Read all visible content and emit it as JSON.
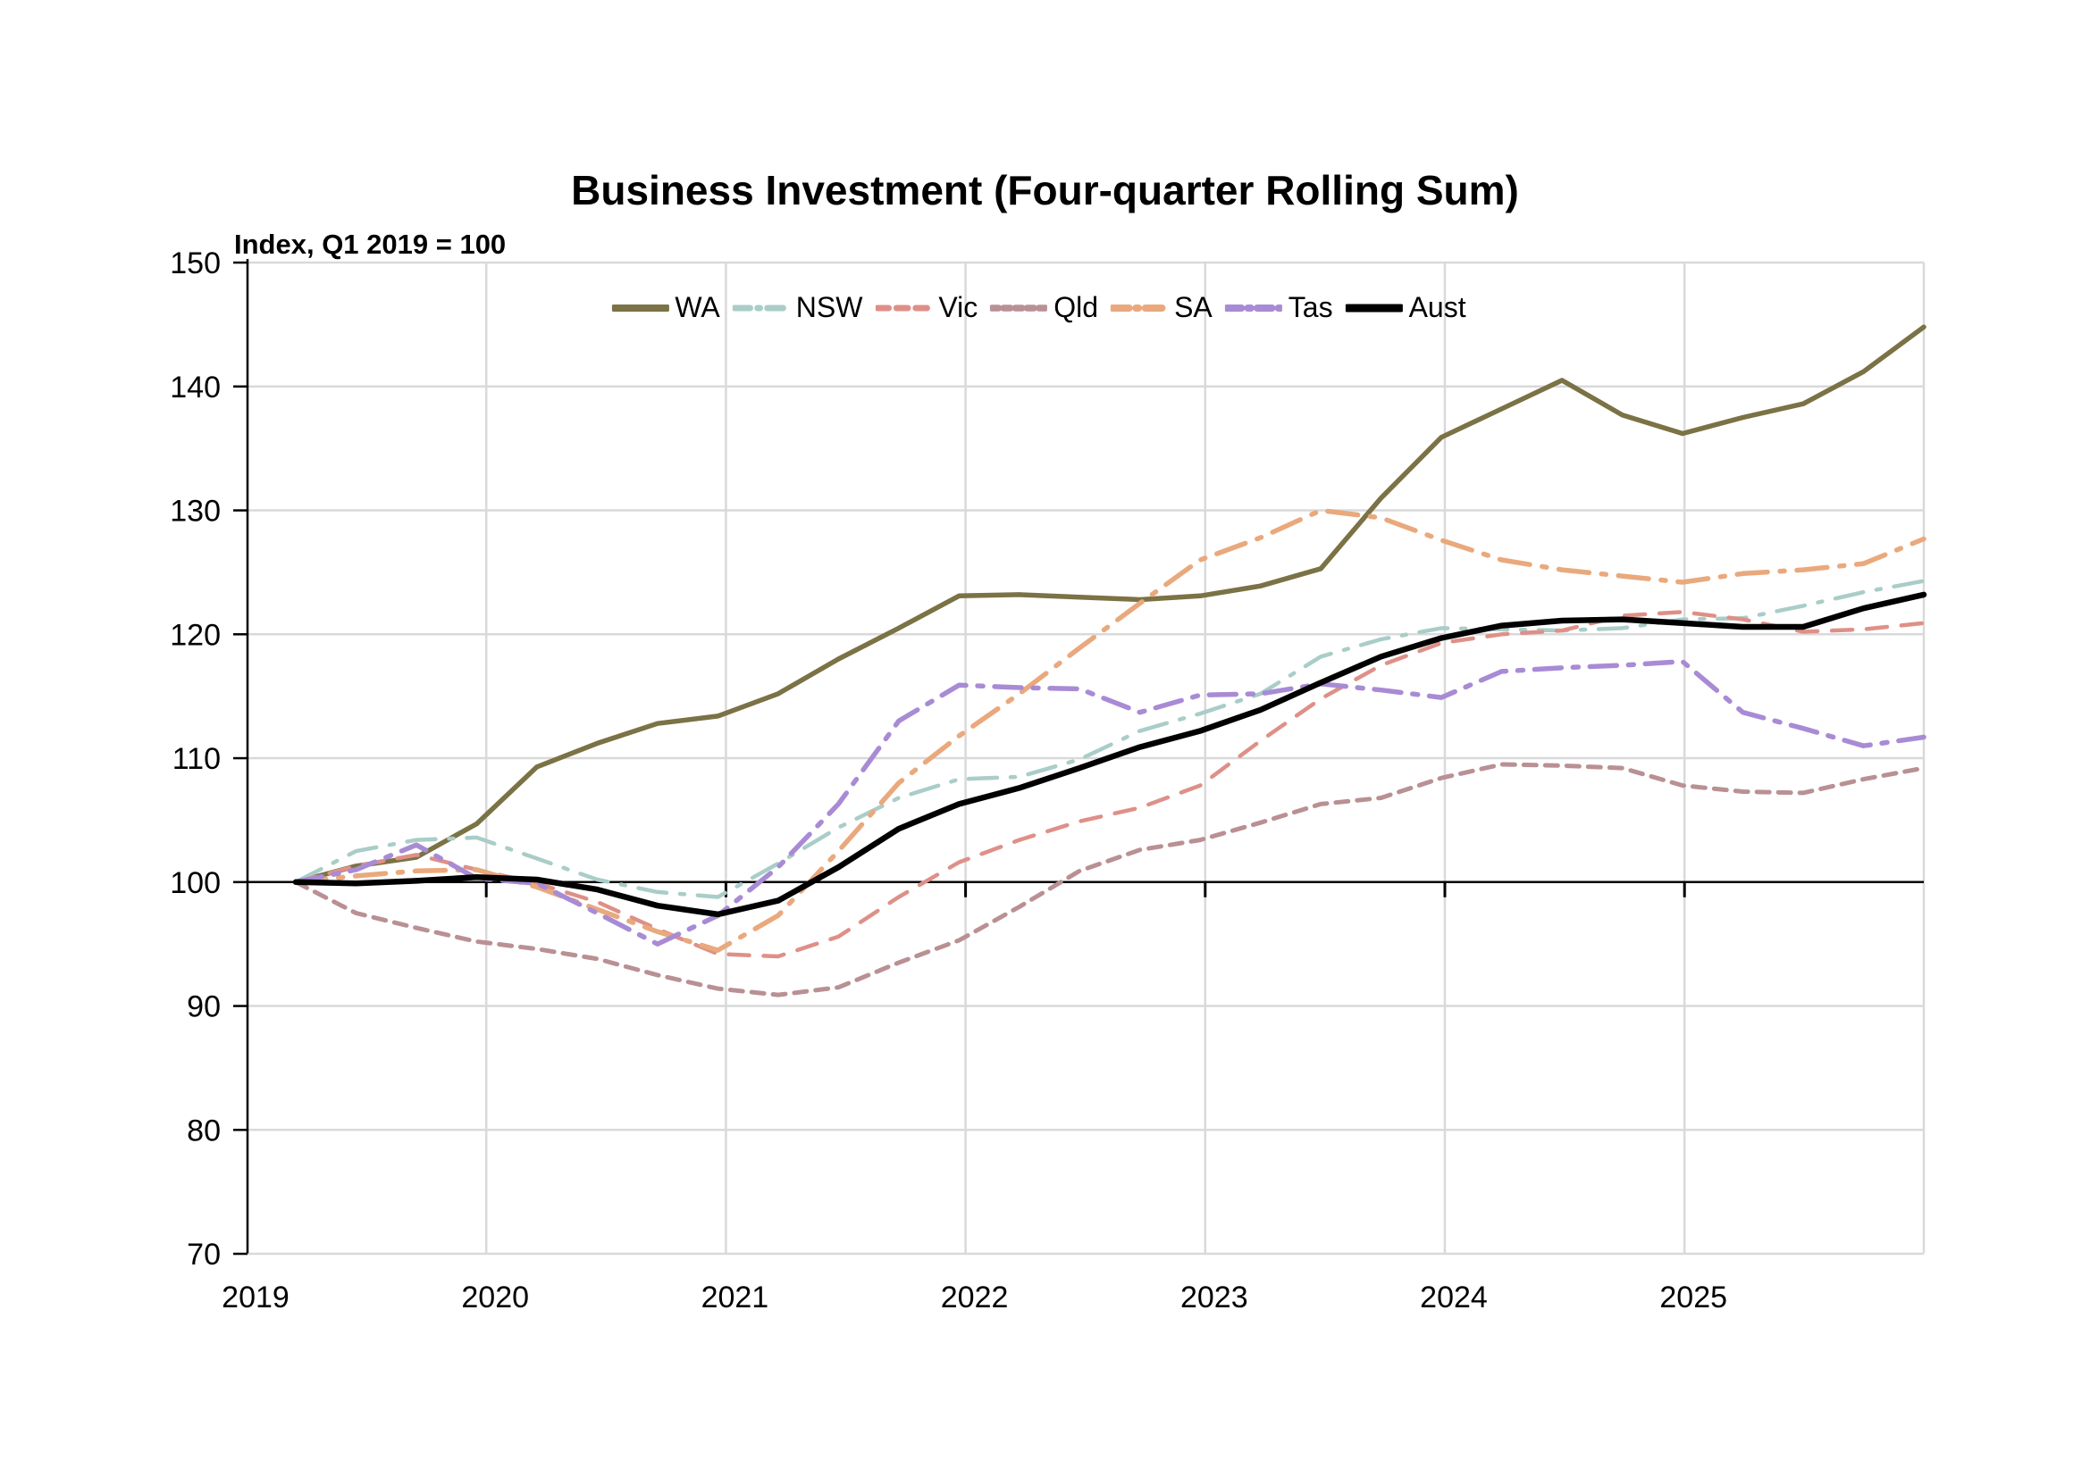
{
  "page": {
    "background": "#ffffff"
  },
  "chart_data": {
    "type": "line",
    "title": "Business Investment (Four-quarter Rolling Sum)",
    "subtitle": "Index, Q1 2019 = 100",
    "x_tick_labels": [
      "2019",
      "2020",
      "2021",
      "2022",
      "2023",
      "2024",
      "2025"
    ],
    "y_ticks": [
      70,
      80,
      90,
      100,
      110,
      120,
      130,
      140,
      150
    ],
    "ylim": [
      70,
      150
    ],
    "baseline": 100,
    "grid": "light-gray-both-directions",
    "legend_position": "top-center",
    "quarters": [
      "2019Q1",
      "2019Q2",
      "2019Q3",
      "2019Q4",
      "2020Q1",
      "2020Q2",
      "2020Q3",
      "2020Q4",
      "2021Q1",
      "2021Q2",
      "2021Q3",
      "2021Q4",
      "2022Q1",
      "2022Q2",
      "2022Q3",
      "2022Q4",
      "2023Q1",
      "2023Q2",
      "2023Q3",
      "2023Q4",
      "2024Q1",
      "2024Q2",
      "2024Q3",
      "2024Q4",
      "2025Q1",
      "2025Q2",
      "2025Q3",
      "2025Q4"
    ],
    "series": [
      {
        "name": "WA",
        "color": "#7b7245",
        "dash": [],
        "width": 5.5,
        "values": [
          100,
          101.3,
          102.0,
          104.7,
          109.3,
          111.2,
          112.8,
          113.4,
          115.2,
          118.0,
          120.5,
          123.1,
          123.2,
          123.0,
          122.8,
          123.1,
          123.9,
          125.3,
          131.0,
          135.9,
          138.2,
          140.5,
          137.7,
          136.2,
          137.5,
          138.6,
          141.2,
          144.8
        ]
      },
      {
        "name": "NSW",
        "color": "#a9cdc8",
        "dash": [
          32,
          15,
          5,
          15
        ],
        "width": 4.5,
        "values": [
          100,
          102.5,
          103.4,
          103.6,
          101.9,
          100.2,
          99.2,
          98.8,
          101.5,
          104.4,
          106.8,
          108.3,
          108.5,
          109.9,
          112.2,
          113.6,
          115.2,
          118.2,
          119.6,
          120.5,
          120.4,
          120.3,
          120.5,
          121.2,
          121.3,
          122.3,
          123.4,
          124.3
        ]
      },
      {
        "name": "Vic",
        "color": "#de9088",
        "dash": [
          23,
          16
        ],
        "width": 4.5,
        "values": [
          100,
          101.3,
          102.2,
          101.0,
          99.9,
          98.4,
          96.2,
          94.2,
          94.0,
          95.6,
          98.8,
          101.6,
          103.4,
          104.9,
          106.0,
          107.8,
          111.4,
          114.8,
          117.5,
          119.3,
          120.0,
          120.3,
          121.5,
          121.8,
          121.2,
          120.2,
          120.4,
          120.9
        ]
      },
      {
        "name": "Qld",
        "color": "#b99093",
        "dash": [
          14,
          10
        ],
        "width": 5,
        "values": [
          100,
          97.5,
          96.3,
          95.2,
          94.6,
          93.8,
          92.5,
          91.4,
          90.9,
          91.5,
          93.5,
          95.3,
          98.0,
          100.9,
          102.6,
          103.4,
          104.8,
          106.3,
          106.8,
          108.4,
          109.5,
          109.4,
          109.2,
          107.8,
          107.3,
          107.2,
          108.3,
          109.2
        ]
      },
      {
        "name": "SA",
        "color": "#e9a97d",
        "dash": [
          34,
          14,
          5,
          14
        ],
        "width": 5.5,
        "values": [
          100,
          100.5,
          100.9,
          101.0,
          99.6,
          97.8,
          96.0,
          94.5,
          97.3,
          102.5,
          108.0,
          111.8,
          115.2,
          118.9,
          122.5,
          126.0,
          127.8,
          130.0,
          129.4,
          127.6,
          126.0,
          125.2,
          124.7,
          124.2,
          124.9,
          125.2,
          125.7,
          127.7
        ]
      },
      {
        "name": "Tas",
        "color": "#a88bd4",
        "dash": [
          30,
          13,
          6,
          13
        ],
        "width": 5.5,
        "values": [
          100,
          101.0,
          103.0,
          100.3,
          99.9,
          97.5,
          95.0,
          97.3,
          101.2,
          106.3,
          113.0,
          115.9,
          115.7,
          115.6,
          113.7,
          115.1,
          115.2,
          116.0,
          115.5,
          114.9,
          117.0,
          117.3,
          117.5,
          117.8,
          113.7,
          112.4,
          111.0,
          111.7
        ]
      },
      {
        "name": "Aust",
        "color": "#000000",
        "dash": [],
        "width": 6.5,
        "values": [
          100,
          99.9,
          100.1,
          100.4,
          100.2,
          99.4,
          98.1,
          97.4,
          98.5,
          101.2,
          104.3,
          106.3,
          107.6,
          109.2,
          110.9,
          112.2,
          113.9,
          116.1,
          118.2,
          119.7,
          120.7,
          121.1,
          121.2,
          120.9,
          120.6,
          120.6,
          122.1,
          123.2
        ]
      }
    ],
    "colors": {
      "gridline": "#d9d9d9",
      "axis": "#000000",
      "baseline_100": "#000000"
    }
  }
}
